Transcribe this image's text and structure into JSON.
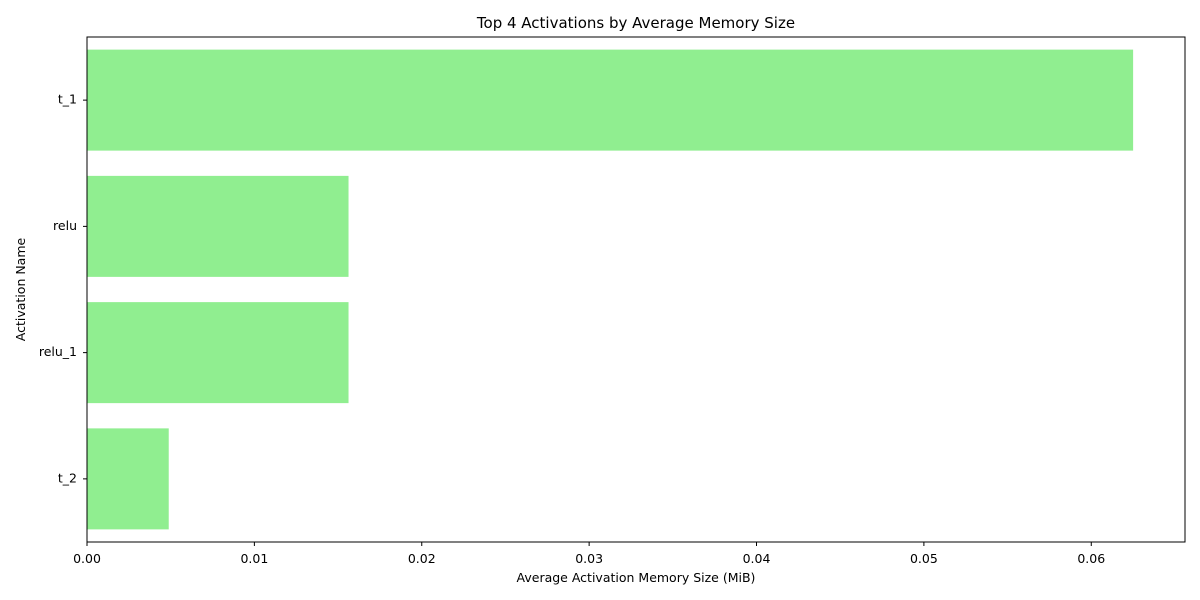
{
  "chart_data": {
    "type": "bar",
    "orientation": "horizontal",
    "title": "Top 4 Activations by Average Memory Size",
    "xlabel": "Average Activation Memory Size (MiB)",
    "ylabel": "Activation Name",
    "categories": [
      "t_1",
      "relu",
      "relu_1",
      "t_2"
    ],
    "values": [
      0.0625,
      0.015625,
      0.015625,
      0.0048828125
    ],
    "xlim": [
      0,
      0.0656
    ],
    "xticks": [
      0.0,
      0.01,
      0.02,
      0.03,
      0.04,
      0.05,
      0.06
    ],
    "xtick_labels": [
      "0.00",
      "0.01",
      "0.02",
      "0.03",
      "0.04",
      "0.05",
      "0.06"
    ],
    "grid": false,
    "legend": "none",
    "bar_color": "#90ee90"
  }
}
